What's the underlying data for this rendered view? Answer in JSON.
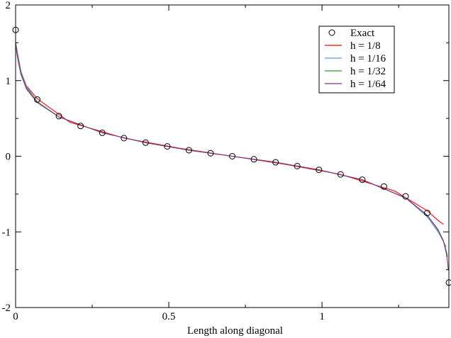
{
  "chart_data": {
    "type": "line",
    "title": "",
    "xlabel": "Length along diagonal",
    "ylabel": "",
    "xlim": [
      0,
      1.414
    ],
    "ylim": [
      -2,
      2
    ],
    "x_ticks": [
      0,
      0.5,
      1
    ],
    "x_tick_labels": [
      "0",
      "0.5",
      "1"
    ],
    "y_ticks": [
      -2,
      -1,
      0,
      1,
      2
    ],
    "y_tick_labels": [
      "-2",
      "-1",
      "0",
      "1",
      "2"
    ],
    "grid": false,
    "legend_position": "top-right",
    "series": [
      {
        "name": "Exact",
        "kind": "markers",
        "marker": "open-circle",
        "color": "#000000",
        "x": [
          0.0,
          0.0707,
          0.1414,
          0.2121,
          0.2828,
          0.3536,
          0.4243,
          0.495,
          0.5657,
          0.6364,
          0.7071,
          0.7778,
          0.8485,
          0.9192,
          0.9899,
          1.0607,
          1.1314,
          1.2021,
          1.2728,
          1.3435,
          1.4142
        ],
        "y": [
          1.67,
          0.75,
          0.53,
          0.4,
          0.31,
          0.24,
          0.18,
          0.13,
          0.08,
          0.04,
          0.0,
          -0.04,
          -0.08,
          -0.13,
          -0.18,
          -0.24,
          -0.31,
          -0.4,
          -0.53,
          -0.75,
          -1.67
        ]
      },
      {
        "name": "h = 1/8",
        "kind": "line",
        "color": "#ff0000",
        "x": [
          0.0,
          0.0177,
          0.0354,
          0.0707,
          0.1768,
          0.3536,
          0.5303,
          0.7071,
          0.8839,
          1.0607,
          1.2374,
          1.3435,
          1.3789,
          1.3965
        ],
        "y": [
          1.5,
          1.12,
          0.93,
          0.76,
          0.45,
          0.24,
          0.11,
          0.0,
          -0.11,
          -0.24,
          -0.46,
          -0.72,
          -0.85,
          -0.9
        ]
      },
      {
        "name": "h = 1/16",
        "kind": "line",
        "color": "#5a9ad2",
        "x": [
          0.0,
          0.0088,
          0.0177,
          0.0354,
          0.0707,
          0.1414,
          0.2828,
          0.4243,
          0.5657,
          0.7071,
          0.8485,
          0.9899,
          1.1314,
          1.2728,
          1.3435,
          1.3789,
          1.3965,
          1.4054
        ],
        "y": [
          1.5,
          1.3,
          1.12,
          0.92,
          0.72,
          0.52,
          0.31,
          0.18,
          0.08,
          0.0,
          -0.08,
          -0.18,
          -0.31,
          -0.55,
          -0.8,
          -1.0,
          -1.13,
          -1.2
        ]
      },
      {
        "name": "h = 1/32",
        "kind": "line",
        "color": "#2e9b2e",
        "x": [
          0.0,
          0.0044,
          0.0088,
          0.0177,
          0.0354,
          0.0707,
          0.1414,
          0.2828,
          0.4243,
          0.5657,
          0.7071,
          0.8485,
          0.9899,
          1.1314,
          1.2728,
          1.3435,
          1.3789,
          1.3965,
          1.4054,
          1.4098
        ],
        "y": [
          1.5,
          1.38,
          1.28,
          1.1,
          0.9,
          0.72,
          0.52,
          0.31,
          0.18,
          0.08,
          0.0,
          -0.08,
          -0.18,
          -0.31,
          -0.55,
          -0.78,
          -0.98,
          -1.12,
          -1.25,
          -1.33
        ]
      },
      {
        "name": "h = 1/64",
        "kind": "line",
        "color": "#8b2f8b",
        "x": [
          0.0,
          0.0022,
          0.0044,
          0.0088,
          0.0177,
          0.0354,
          0.0707,
          0.1414,
          0.2828,
          0.4243,
          0.5657,
          0.7071,
          0.8485,
          0.9899,
          1.1314,
          1.2728,
          1.3435,
          1.3789,
          1.3965,
          1.4054,
          1.4098,
          1.412
        ],
        "y": [
          1.5,
          1.42,
          1.35,
          1.25,
          1.08,
          0.89,
          0.71,
          0.52,
          0.31,
          0.18,
          0.08,
          0.0,
          -0.08,
          -0.18,
          -0.31,
          -0.55,
          -0.78,
          -0.97,
          -1.12,
          -1.28,
          -1.4,
          -1.5
        ]
      }
    ]
  }
}
